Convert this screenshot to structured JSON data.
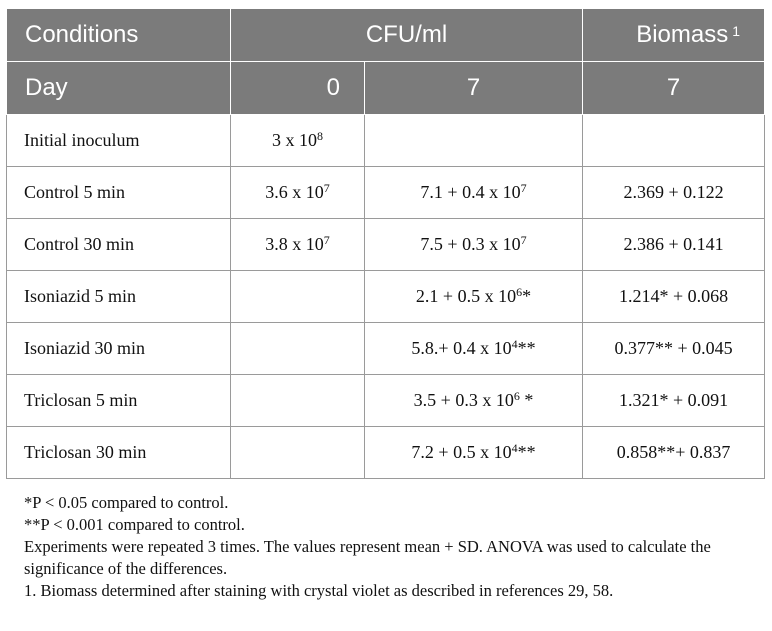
{
  "header": {
    "row1": {
      "col1": "Conditions",
      "col2": "CFU/ml",
      "col3": "Biomass",
      "col3_sup": "1"
    },
    "row2": {
      "col1": "Day",
      "col2": "0",
      "col3": "7",
      "col4": "7"
    }
  },
  "rows": [
    {
      "condition": "Initial inoculum",
      "day0": "3 x 10",
      "day0_exp": "8",
      "day7": "",
      "day7_exp": "",
      "day7_suffix": "",
      "biomass": ""
    },
    {
      "condition": "Control 5 min",
      "day0": "3.6 x 10",
      "day0_exp": "7",
      "day7": "7.1 + 0.4 x 10",
      "day7_exp": "7",
      "day7_suffix": "",
      "biomass": "2.369 + 0.122"
    },
    {
      "condition": "Control 30 min",
      "day0": "3.8 x 10",
      "day0_exp": "7",
      "day7": "7.5 + 0.3 x 10",
      "day7_exp": "7",
      "day7_suffix": "",
      "biomass": "2.386 + 0.141"
    },
    {
      "condition": "Isoniazid 5 min",
      "day0": "",
      "day0_exp": "",
      "day7": "2.1 + 0.5 x 10",
      "day7_exp": "6",
      "day7_suffix": "*",
      "biomass": "1.214* + 0.068"
    },
    {
      "condition": "Isoniazid 30 min",
      "day0": "",
      "day0_exp": "",
      "day7": "5.8.+ 0.4 x 10",
      "day7_exp": "4",
      "day7_suffix": "**",
      "biomass": "0.377** + 0.045"
    },
    {
      "condition": "Triclosan 5 min",
      "day0": "",
      "day0_exp": "",
      "day7": "3.5 + 0.3 x 10",
      "day7_exp": "6",
      "day7_suffix": " *",
      "biomass": "1.321* + 0.091"
    },
    {
      "condition": "Triclosan 30 min",
      "day0": "",
      "day0_exp": "",
      "day7": "7.2 + 0.5 x 10",
      "day7_exp": "4",
      "day7_suffix": "**",
      "biomass": "0.858**+ 0.837"
    }
  ],
  "footnotes": {
    "n1": "*P < 0.05 compared to control.",
    "n2": "**P < 0.001 compared to control.",
    "n3": "Experiments were repeated 3 times. The values represent mean + SD. ANOVA was used to calculate the significance of the differences.",
    "n4": "1. Biomass determined after staining with crystal violet as described in references 29, 58."
  },
  "colors": {
    "header_bg": "#7b7b7b",
    "header_text": "#ffffff",
    "grid": "#9a9a9a"
  }
}
